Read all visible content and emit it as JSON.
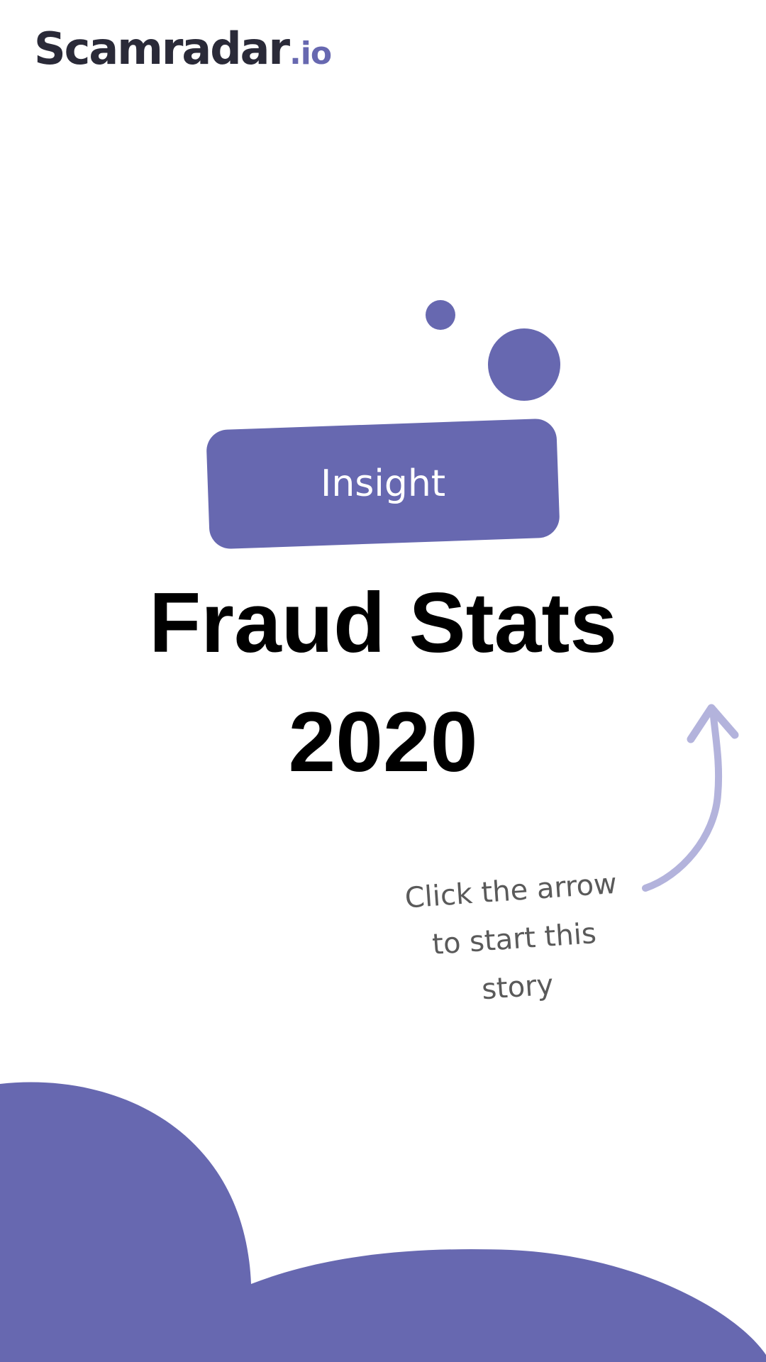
{
  "brand": {
    "name": "Scamradar",
    "tld": ".io"
  },
  "badge": {
    "label": "Insight"
  },
  "title": {
    "line1": "Fraud Stats",
    "line2": "2020"
  },
  "hint": {
    "line1": "Click the arrow",
    "line2": "to start this",
    "line3": "story"
  },
  "icons": {
    "arrow": "curved-arrow-up-icon"
  },
  "colors": {
    "accent": "#6768b0",
    "arrow": "#b3b3dc",
    "logo_text": "#2a2a38",
    "title_text": "#000000",
    "hint_text": "#5a5a5a",
    "background": "#ffffff"
  }
}
